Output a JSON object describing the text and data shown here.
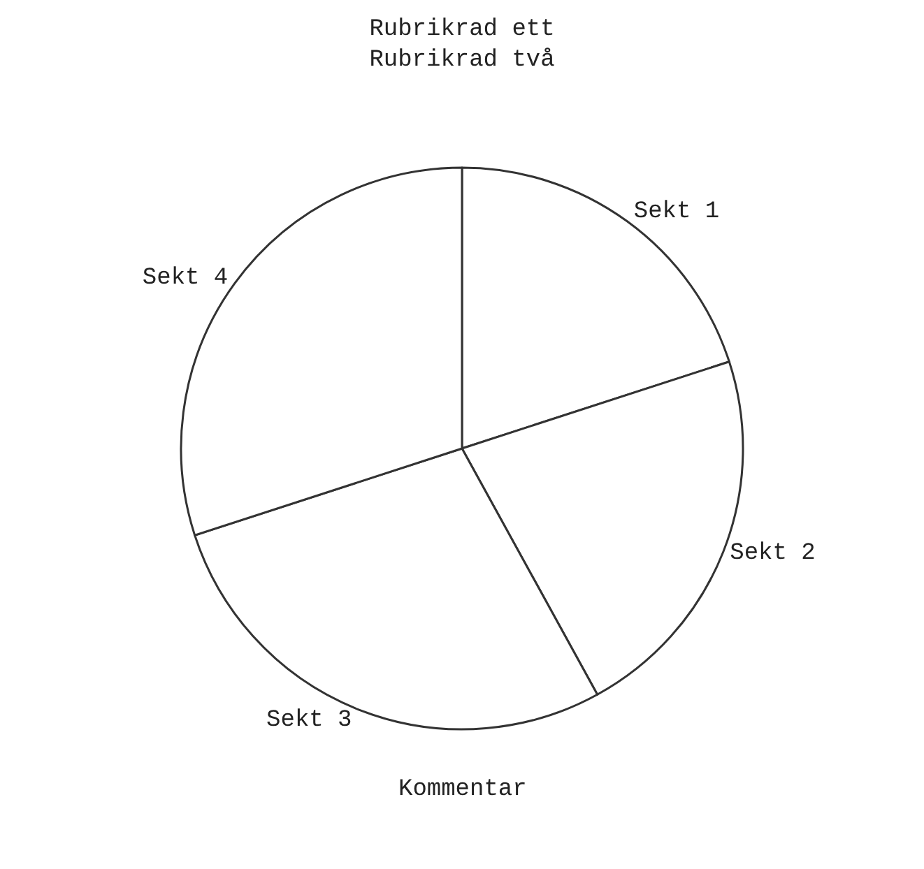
{
  "chart_data": {
    "type": "pie",
    "title": "Rubrikrad ett\nRubrikrad två",
    "categories": [
      "Sekt 1",
      "Sekt 2",
      "Sekt 3",
      "Sekt 4"
    ],
    "values": [
      20,
      22,
      28,
      30
    ],
    "colors": [
      "#ffffff",
      "#ffffff",
      "#ffffff",
      "#ffffff"
    ],
    "annotations": [
      "Kommentar"
    ],
    "legend": false
  }
}
